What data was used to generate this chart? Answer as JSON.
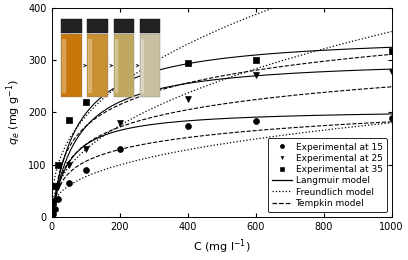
{
  "title": "",
  "xlabel": "C (mg l$^{-1}$)",
  "ylabel": "$q_e$ (mg g$^{-1}$)",
  "xlim": [
    0,
    1000
  ],
  "ylim": [
    0,
    400
  ],
  "xticks": [
    0,
    200,
    400,
    600,
    800,
    1000
  ],
  "yticks": [
    0,
    100,
    200,
    300,
    400
  ],
  "exp15_x": [
    5,
    10,
    20,
    50,
    100,
    200,
    400,
    600,
    1000
  ],
  "exp15_y": [
    5,
    15,
    35,
    65,
    90,
    130,
    175,
    183,
    190
  ],
  "exp25_x": [
    5,
    10,
    20,
    50,
    100,
    200,
    400,
    600,
    1000
  ],
  "exp25_y": [
    10,
    30,
    60,
    100,
    130,
    180,
    225,
    272,
    278
  ],
  "exp35_x": [
    5,
    10,
    20,
    50,
    100,
    200,
    400,
    600,
    1000
  ],
  "exp35_y": [
    28,
    60,
    100,
    185,
    220,
    270,
    295,
    300,
    318
  ],
  "langmuir15_params": {
    "qm": 207,
    "KL": 0.02
  },
  "langmuir25_params": {
    "qm": 305,
    "KL": 0.013
  },
  "langmuir35_params": {
    "qm": 350,
    "KL": 0.013
  },
  "freundlich15_params": {
    "KF": 14.0,
    "n": 0.37
  },
  "freundlich25_params": {
    "KF": 17.0,
    "n": 0.44
  },
  "freundlich35_params": {
    "KF": 32.0,
    "n": 0.39
  },
  "tempkin15_params": {
    "A": 0.25,
    "B": 33
  },
  "tempkin25_params": {
    "A": 0.18,
    "B": 48
  },
  "tempkin35_params": {
    "A": 0.18,
    "B": 60
  },
  "bg_color": "#f0f0f0",
  "font_size": 7,
  "vial_colors": [
    "#c8780a",
    "#c89030",
    "#c0a860",
    "#c8c0a0"
  ],
  "vial_cap_color": "#222222",
  "vial_bg": "#b8b8b8"
}
